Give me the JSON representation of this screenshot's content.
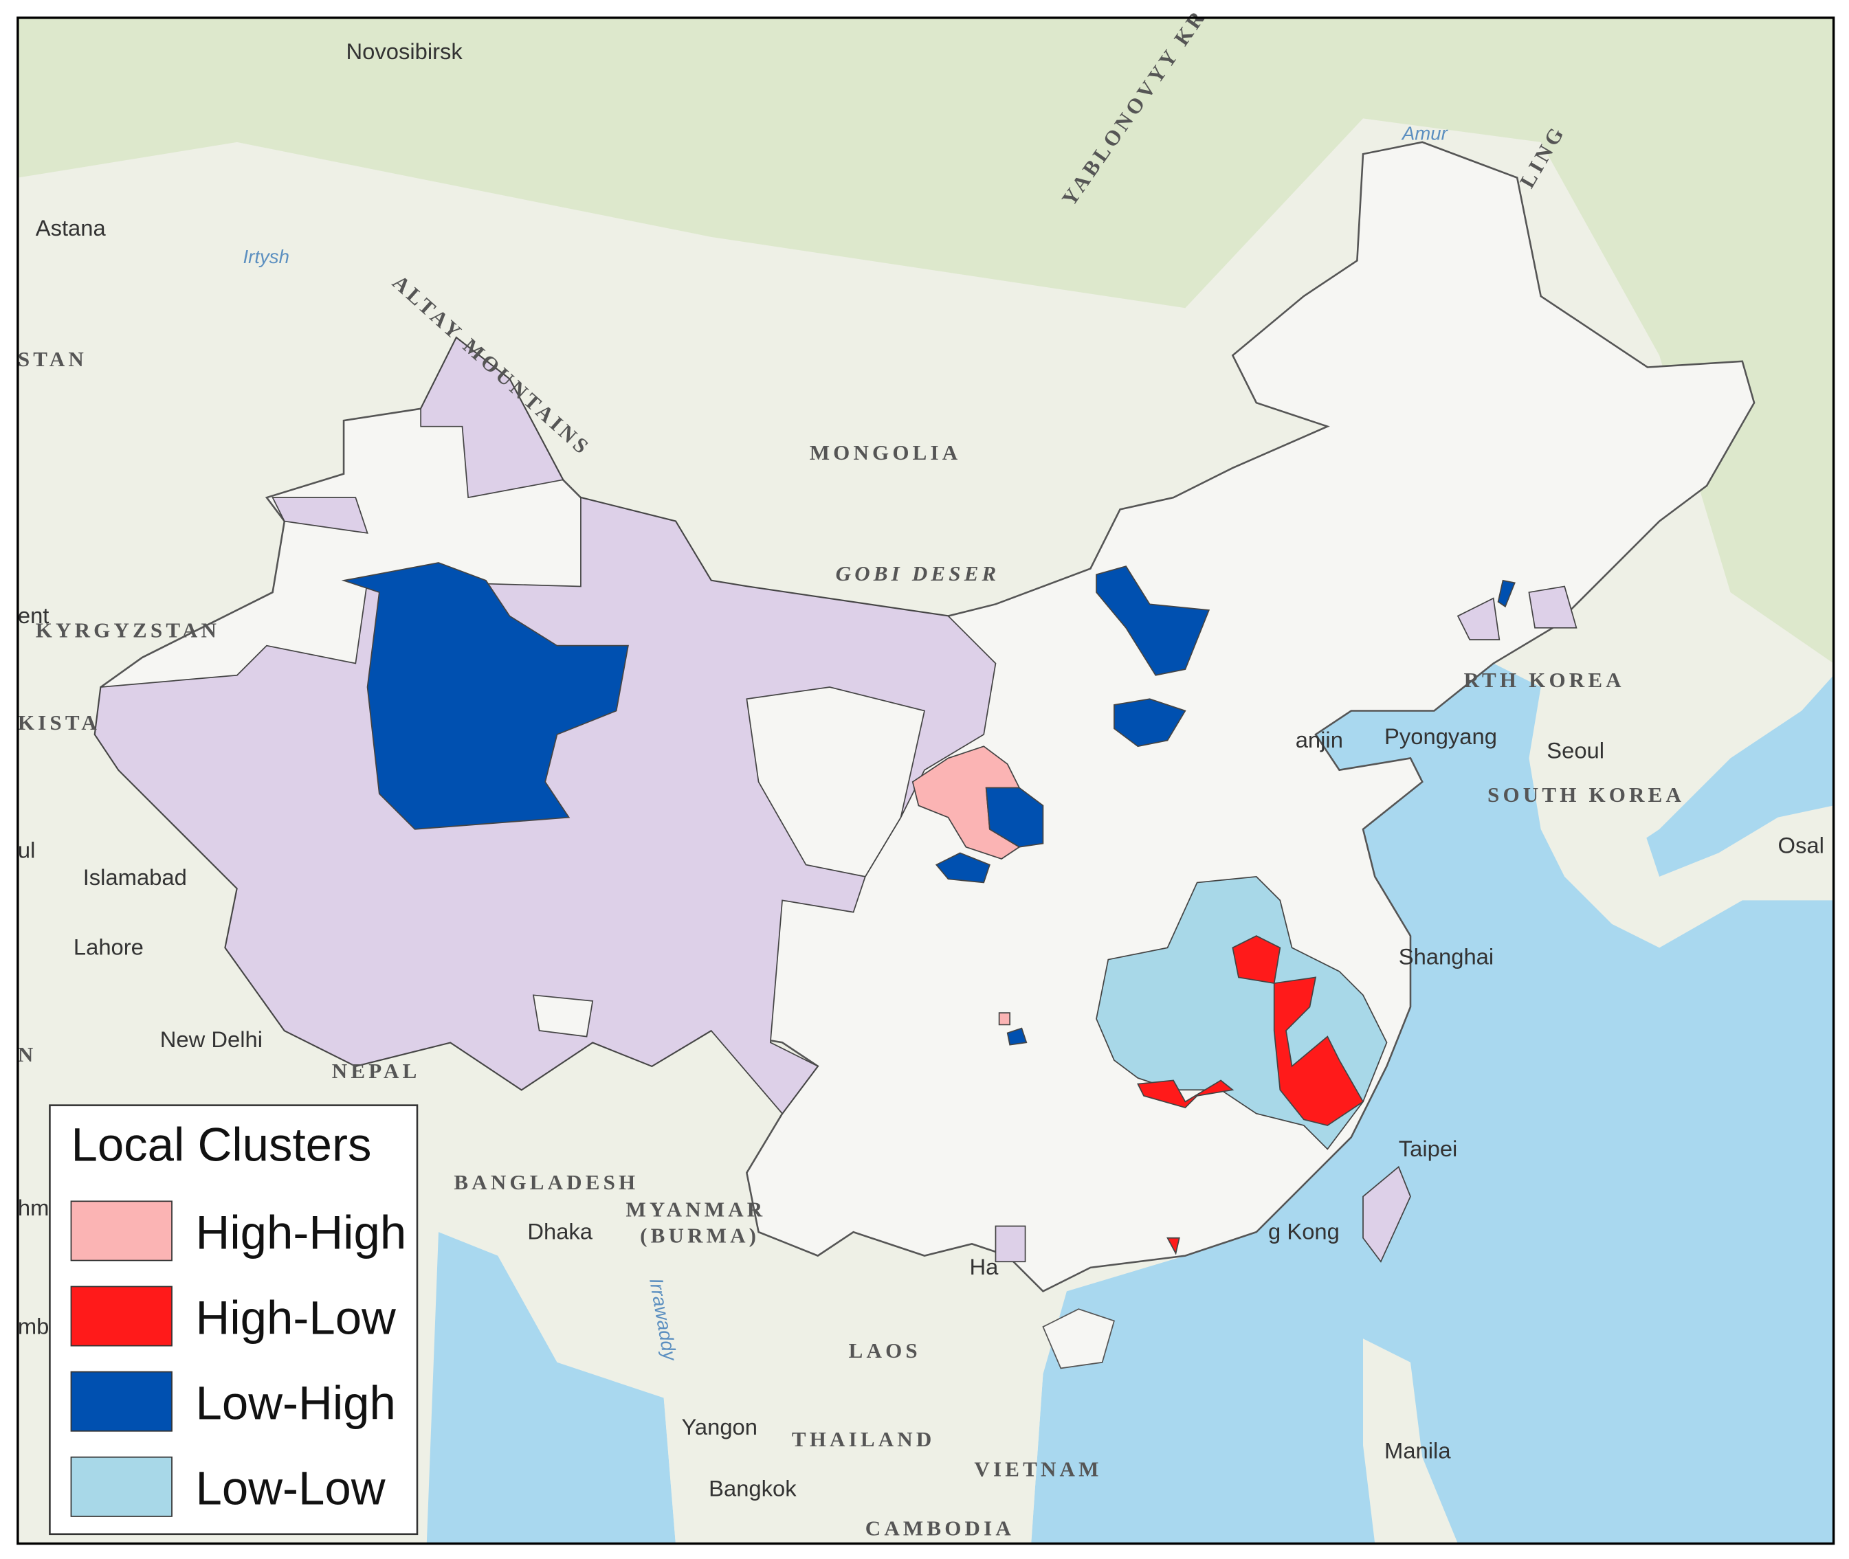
{
  "legend": {
    "title": "Local Clusters",
    "items": [
      {
        "label": "High-High",
        "color": "#fbb4b4"
      },
      {
        "label": "High-Low",
        "color": "#ff1a1a"
      },
      {
        "label": "Low-High",
        "color": "#0050b0"
      },
      {
        "label": "Low-Low",
        "color": "#a8d8e8"
      }
    ]
  },
  "labels": [
    "Novosibirsk",
    "Astana",
    "STAN",
    "Irtysh",
    "ALTAY MOUNTAINS",
    "YABLONOVYY KR",
    "Amur",
    "LING",
    "MONGOLIA",
    "GOBI DESER",
    "KYRGYZSTAN",
    "ent",
    "KISTA",
    "ul",
    "Islamabad",
    "Lahore",
    "New Delhi",
    "NEPAL",
    "N",
    "BANGLADESH",
    "Dhaka",
    "MYANMAR",
    "(BURMA)",
    "Irrawaddy",
    "LAOS",
    "Yangon",
    "THAILAND",
    "Bangkok",
    "VIETNAM",
    "CAMBODIA",
    "Manila",
    "Taipei",
    "g Kong",
    "Ha",
    "Shanghai",
    "Seoul",
    "SOUTH KOREA",
    "Pyongyang",
    "RTH KOREA",
    "anjin",
    "Osal",
    "hm",
    "mb"
  ]
}
